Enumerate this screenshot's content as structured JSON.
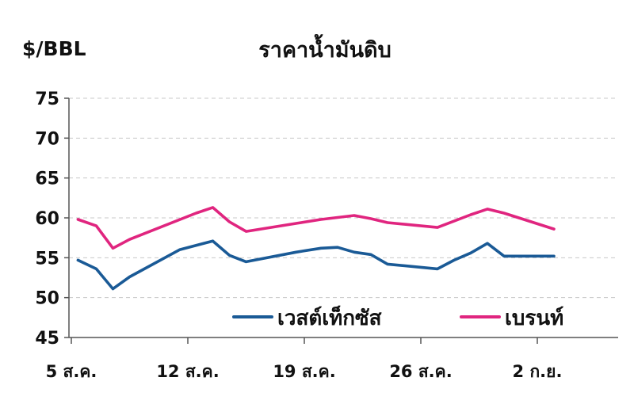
{
  "chart_data": {
    "type": "line",
    "title": "ราคาน้ำมันดิบ",
    "ylabel": "$/BBL",
    "ylim": [
      45,
      75
    ],
    "yticks": [
      45,
      50,
      55,
      60,
      65,
      70,
      75
    ],
    "xticks": [
      {
        "label": "5 ส.ค.",
        "day": 0
      },
      {
        "label": "12 ส.ค.",
        "day": 7
      },
      {
        "label": "19 ส.ค.",
        "day": 14
      },
      {
        "label": "26 ส.ค.",
        "day": 21
      },
      {
        "label": "2 ก.ย.",
        "day": 28
      }
    ],
    "grid": true,
    "legend": "bottom-right",
    "series": [
      {
        "name": "เวสต์เท็กซัส",
        "color": "#1a5a96",
        "points": [
          [
            0.4,
            54.7
          ],
          [
            1.5,
            53.6
          ],
          [
            2.5,
            51.1
          ],
          [
            3.5,
            52.6
          ],
          [
            6.5,
            56.0
          ],
          [
            8.5,
            57.1
          ],
          [
            9.5,
            55.3
          ],
          [
            10.5,
            54.5
          ],
          [
            13.5,
            55.7
          ],
          [
            15,
            56.2
          ],
          [
            16,
            56.3
          ],
          [
            17,
            55.7
          ],
          [
            18,
            55.4
          ],
          [
            19,
            54.2
          ],
          [
            22,
            53.6
          ],
          [
            23,
            54.7
          ],
          [
            24,
            55.6
          ],
          [
            25,
            56.8
          ],
          [
            26,
            55.2
          ],
          [
            29,
            55.2
          ]
        ]
      },
      {
        "name": "เบรนท์",
        "color": "#e0257f",
        "points": [
          [
            0.4,
            59.8
          ],
          [
            1.5,
            59.0
          ],
          [
            2.5,
            56.2
          ],
          [
            3.5,
            57.3
          ],
          [
            7.5,
            60.6
          ],
          [
            8.5,
            61.3
          ],
          [
            9.5,
            59.5
          ],
          [
            10.5,
            58.3
          ],
          [
            13.5,
            59.3
          ],
          [
            15,
            59.8
          ],
          [
            17,
            60.3
          ],
          [
            18,
            59.9
          ],
          [
            19,
            59.4
          ],
          [
            22,
            58.8
          ],
          [
            24,
            60.4
          ],
          [
            25,
            61.1
          ],
          [
            26,
            60.6
          ],
          [
            29,
            58.6
          ]
        ]
      }
    ]
  }
}
